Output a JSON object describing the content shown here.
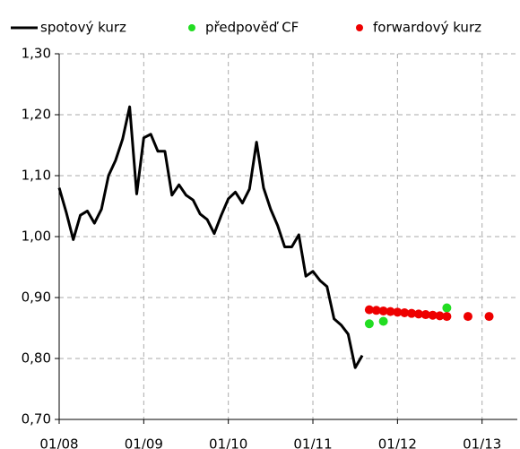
{
  "chart_data": {
    "type": "line",
    "xlim": [
      "2008-01",
      "2013-06"
    ],
    "xticks": [
      {
        "value": "2008-01",
        "label": "01/08"
      },
      {
        "value": "2009-01",
        "label": "01/09"
      },
      {
        "value": "2010-01",
        "label": "01/10"
      },
      {
        "value": "2011-01",
        "label": "01/11"
      },
      {
        "value": "2012-01",
        "label": "01/12"
      },
      {
        "value": "2013-01",
        "label": "01/13"
      }
    ],
    "ylim": [
      0.7,
      1.3
    ],
    "yticks": [
      {
        "value": 0.7,
        "label": "0,70"
      },
      {
        "value": 0.8,
        "label": "0,80"
      },
      {
        "value": 0.9,
        "label": "0,90"
      },
      {
        "value": 1.0,
        "label": "1,00"
      },
      {
        "value": 1.1,
        "label": "1,10"
      },
      {
        "value": 1.2,
        "label": "1,20"
      },
      {
        "value": 1.3,
        "label": "1,30"
      }
    ],
    "grid": true,
    "series": [
      {
        "name": "spotový kurz",
        "color": "#000000",
        "style": "line",
        "x": [
          "2008-01",
          "2008-02",
          "2008-03",
          "2008-04",
          "2008-05",
          "2008-06",
          "2008-07",
          "2008-08",
          "2008-09",
          "2008-10",
          "2008-11",
          "2008-12",
          "2009-01",
          "2009-02",
          "2009-03",
          "2009-04",
          "2009-05",
          "2009-06",
          "2009-07",
          "2009-08",
          "2009-09",
          "2009-10",
          "2009-11",
          "2009-12",
          "2010-01",
          "2010-02",
          "2010-03",
          "2010-04",
          "2010-05",
          "2010-06",
          "2010-07",
          "2010-08",
          "2010-09",
          "2010-10",
          "2010-11",
          "2010-12",
          "2011-01",
          "2011-02",
          "2011-03",
          "2011-04",
          "2011-05",
          "2011-06",
          "2011-07",
          "2011-08"
        ],
        "values": [
          1.08,
          1.04,
          0.995,
          1.035,
          1.042,
          1.022,
          1.045,
          1.1,
          1.125,
          1.16,
          1.213,
          1.07,
          1.162,
          1.168,
          1.14,
          1.14,
          1.068,
          1.085,
          1.068,
          1.06,
          1.037,
          1.028,
          1.005,
          1.035,
          1.062,
          1.073,
          1.055,
          1.078,
          1.155,
          1.08,
          1.045,
          1.018,
          0.983,
          0.983,
          1.003,
          0.935,
          0.943,
          0.928,
          0.918,
          0.865,
          0.855,
          0.84,
          0.785,
          0.805
        ]
      },
      {
        "name": "předpověď CF",
        "color": "#22dd22",
        "style": "dot",
        "x": [
          "2011-09",
          "2011-11",
          "2012-08"
        ],
        "values": [
          0.857,
          0.861,
          0.883
        ]
      },
      {
        "name": "forwardový kurz",
        "color": "#ee0000",
        "style": "dot",
        "x": [
          "2011-09",
          "2011-10",
          "2011-11",
          "2011-12",
          "2012-01",
          "2012-02",
          "2012-03",
          "2012-04",
          "2012-05",
          "2012-06",
          "2012-07",
          "2012-08",
          "2012-11",
          "2013-02"
        ],
        "values": [
          0.88,
          0.879,
          0.878,
          0.877,
          0.876,
          0.875,
          0.874,
          0.873,
          0.872,
          0.871,
          0.87,
          0.869,
          0.869,
          0.869
        ]
      }
    ]
  }
}
